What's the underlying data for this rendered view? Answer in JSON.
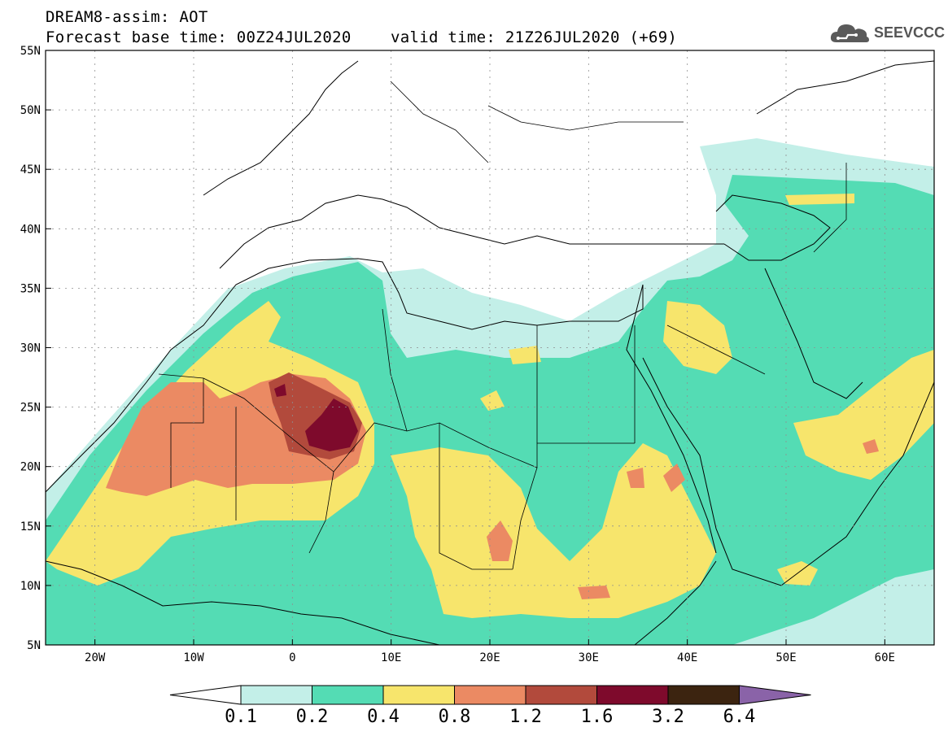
{
  "header": {
    "line1": "DREAM8-assim: AOT",
    "base_time": "Forecast base time: 00Z24JUL2020",
    "valid_time": "valid time: 21Z26JUL2020 (+69)"
  },
  "logo": {
    "text": "SEEVCCC",
    "icon": "cloud-icon"
  },
  "map": {
    "lon_range": [
      -25,
      65
    ],
    "lat_range": [
      5,
      55
    ],
    "lon_ticks": [
      {
        "value": -20,
        "label": "20W"
      },
      {
        "value": -10,
        "label": "10W"
      },
      {
        "value": 0,
        "label": "0"
      },
      {
        "value": 10,
        "label": "10E"
      },
      {
        "value": 20,
        "label": "20E"
      },
      {
        "value": 30,
        "label": "30E"
      },
      {
        "value": 40,
        "label": "40E"
      },
      {
        "value": 50,
        "label": "50E"
      },
      {
        "value": 60,
        "label": "60E"
      }
    ],
    "lat_ticks": [
      {
        "value": 55,
        "label": "55N"
      },
      {
        "value": 50,
        "label": "50N"
      },
      {
        "value": 45,
        "label": "45N"
      },
      {
        "value": 40,
        "label": "40N"
      },
      {
        "value": 35,
        "label": "35N"
      },
      {
        "value": 30,
        "label": "30N"
      },
      {
        "value": 25,
        "label": "25N"
      },
      {
        "value": 20,
        "label": "20N"
      },
      {
        "value": 15,
        "label": "15N"
      },
      {
        "value": 10,
        "label": "10N"
      },
      {
        "value": 5,
        "label": "5N"
      }
    ],
    "grid": true
  },
  "colorbar": {
    "colors": [
      "#c3efe8",
      "#54dcb4",
      "#f7e56c",
      "#eb8a63",
      "#b24a3c",
      "#7e0a2c",
      "#3c2410"
    ],
    "under_color": "#ffffff",
    "over_color": "#8a63a8",
    "levels": [
      "0.1",
      "0.2",
      "0.4",
      "0.8",
      "1.2",
      "1.6",
      "3.2",
      "6.4"
    ]
  }
}
